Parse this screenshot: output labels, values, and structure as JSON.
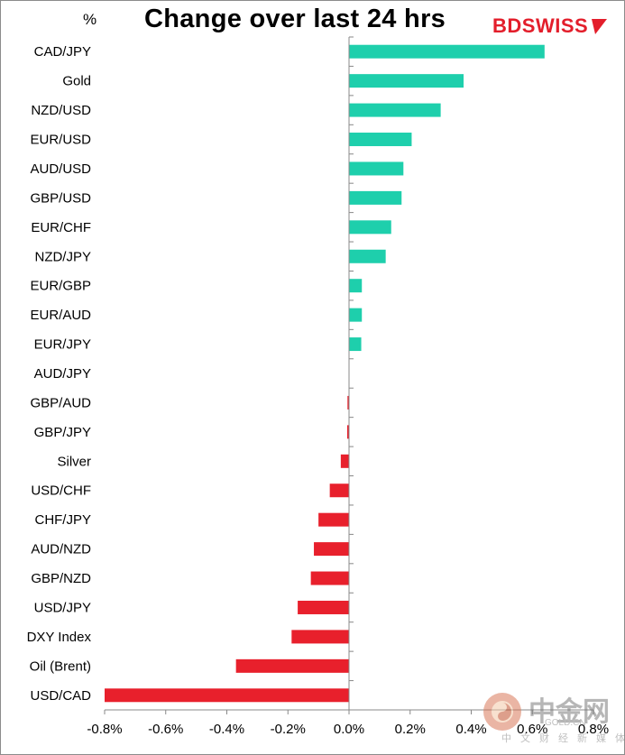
{
  "header": {
    "unit_label": "%",
    "title": "Change over last 24 hrs",
    "brand": "BDSWISS"
  },
  "watermark": {
    "cn_title": "中金网",
    "site": "GOLD.CN",
    "cn_sub": "中文财经新媒体"
  },
  "colors": {
    "positive": "#1ecfac",
    "negative": "#e8202c",
    "axis": "#888888",
    "brand": "#e31e2b"
  },
  "chart_data": {
    "type": "bar",
    "orientation": "horizontal",
    "title": "Change over last 24 hrs",
    "ylabel": "%",
    "xlim": [
      -0.8,
      0.8
    ],
    "x_ticks": [
      -0.8,
      -0.6,
      -0.4,
      -0.2,
      0.0,
      0.2,
      0.4,
      0.6,
      0.8
    ],
    "x_tick_labels": [
      "-0.8%",
      "-0.6%",
      "-0.4%",
      "-0.2%",
      "0.0%",
      "0.2%",
      "0.4%",
      "0.6%",
      "0.8%"
    ],
    "categories": [
      "CAD/JPY",
      "Gold",
      "NZD/USD",
      "EUR/USD",
      "AUD/USD",
      "GBP/USD",
      "EUR/CHF",
      "NZD/JPY",
      "EUR/GBP",
      "EUR/AUD",
      "EUR/JPY",
      "AUD/JPY",
      "GBP/AUD",
      "GBP/JPY",
      "Silver",
      "USD/CHF",
      "CHF/JPY",
      "AUD/NZD",
      "GBP/NZD",
      "USD/JPY",
      "DXY Index",
      "Oil (Brent)",
      "USD/CAD"
    ],
    "values": [
      0.64,
      0.375,
      0.3,
      0.205,
      0.178,
      0.172,
      0.138,
      0.12,
      0.042,
      0.042,
      0.04,
      0.0,
      -0.005,
      -0.006,
      -0.027,
      -0.063,
      -0.1,
      -0.115,
      -0.125,
      -0.168,
      -0.188,
      -0.37,
      -0.8
    ]
  }
}
